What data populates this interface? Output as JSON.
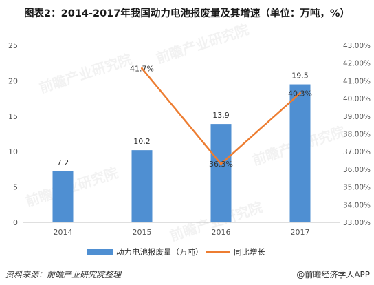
{
  "title": "图表2：2014-2017年我国动力电池报废量及其增速（单位：万吨，%）",
  "source": "资料来源：前瞻产业研究院整理",
  "credit": "@前瞻经济学人APP",
  "watermark_text": "前瞻产业研究院",
  "colors": {
    "bar": "#4f8fd2",
    "line": "#ed7d31",
    "axis_text": "#555555",
    "grid": "#e6e6e6"
  },
  "chart_data": {
    "type": "bar",
    "categories": [
      "2014",
      "2015",
      "2016",
      "2017"
    ],
    "series": [
      {
        "name": "动力电池报废量（万吨）",
        "type": "bar",
        "axis": "left",
        "values": [
          7.2,
          10.2,
          13.9,
          19.5
        ],
        "labels": [
          "7.2",
          "10.2",
          "13.9",
          "19.5"
        ]
      },
      {
        "name": "同比增长",
        "type": "line",
        "axis": "right",
        "values": [
          null,
          41.7,
          36.3,
          40.3
        ],
        "labels": [
          "",
          "41.7%",
          "36.3%",
          "40.3%"
        ]
      }
    ],
    "ylim_left": [
      0,
      25
    ],
    "yticks_left": [
      "0",
      "5",
      "10",
      "15",
      "20",
      "25"
    ],
    "ylim_right": [
      33.0,
      43.0
    ],
    "yticks_right": [
      "33.00%",
      "34.00%",
      "35.00%",
      "36.00%",
      "37.00%",
      "38.00%",
      "39.00%",
      "40.00%",
      "41.00%",
      "42.00%",
      "43.00%"
    ],
    "legend_position": "bottom",
    "grid": false
  }
}
